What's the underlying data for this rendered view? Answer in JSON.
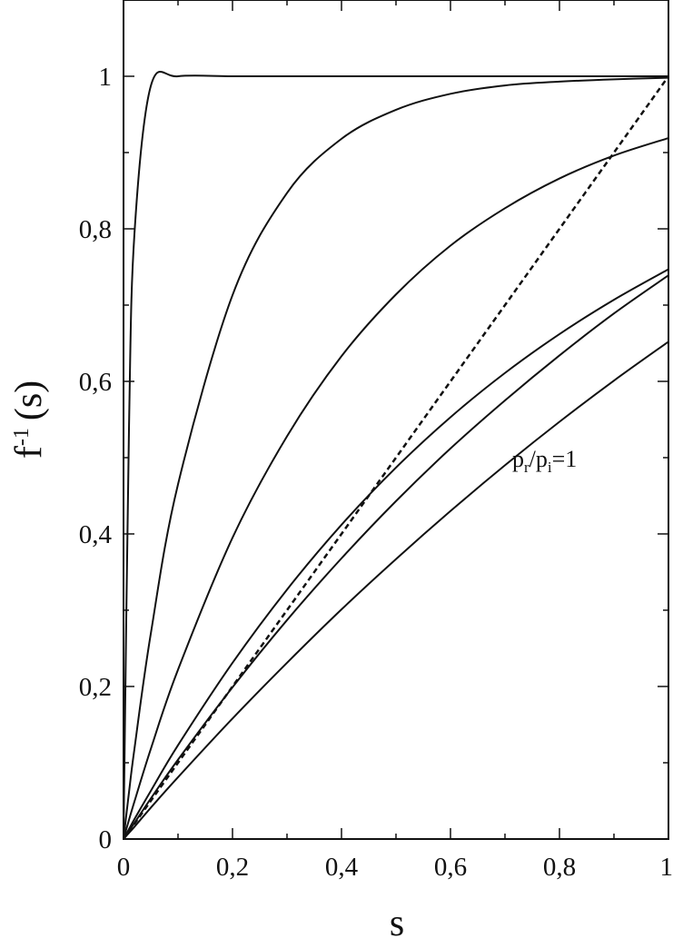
{
  "chart_data": {
    "type": "line",
    "title": "",
    "xlabel": "s",
    "ylabel": {
      "main": "f",
      "sup": "-1",
      "arg": "(s)"
    },
    "xlim": [
      0,
      1
    ],
    "ylim": [
      0,
      1.1
    ],
    "x_ticks": [
      {
        "value": 0,
        "label": "0"
      },
      {
        "value": 0.2,
        "label": "0,2"
      },
      {
        "value": 0.4,
        "label": "0,4"
      },
      {
        "value": 0.6,
        "label": "0,6"
      },
      {
        "value": 0.8,
        "label": "0,8"
      },
      {
        "value": 1,
        "label": "1"
      }
    ],
    "y_ticks": [
      {
        "value": 0,
        "label": "0"
      },
      {
        "value": 0.2,
        "label": "0,2"
      },
      {
        "value": 0.4,
        "label": "0,4"
      },
      {
        "value": 0.6,
        "label": "0,6"
      },
      {
        "value": 0.8,
        "label": "0,8"
      },
      {
        "value": 1,
        "label": "1"
      }
    ],
    "grid": false,
    "x": [
      0,
      0.01,
      0.02,
      0.05,
      0.1,
      0.2,
      0.3,
      0.4,
      0.5,
      0.6,
      0.7,
      0.8,
      0.9,
      1.0
    ],
    "series": [
      {
        "style": "solid",
        "values": [
          0,
          0.537,
          0.793,
          0.987,
          1.0,
          1.0,
          1.0,
          1.0,
          1.0,
          1.0,
          1.0,
          1.0,
          1.0,
          1.0
        ]
      },
      {
        "style": "solid",
        "values": [
          0,
          0.061,
          0.118,
          0.269,
          0.465,
          0.713,
          0.847,
          0.918,
          0.956,
          0.977,
          0.988,
          0.993,
          0.996,
          0.998
        ]
      },
      {
        "style": "solid",
        "values": [
          0,
          0.025,
          0.049,
          0.118,
          0.222,
          0.395,
          0.528,
          0.633,
          0.714,
          0.778,
          0.827,
          0.866,
          0.896,
          0.919
        ]
      },
      {
        "style": "solid",
        "values": [
          0,
          0.013,
          0.026,
          0.063,
          0.123,
          0.231,
          0.327,
          0.412,
          0.487,
          0.553,
          0.611,
          0.662,
          0.707,
          0.747
        ]
      },
      {
        "style": "solid",
        "values": [
          0,
          0.011,
          0.021,
          0.053,
          0.104,
          0.199,
          0.287,
          0.368,
          0.443,
          0.512,
          0.575,
          0.634,
          0.689,
          0.739
        ]
      },
      {
        "style": "solid",
        "values": [
          0,
          0.008,
          0.016,
          0.041,
          0.081,
          0.158,
          0.231,
          0.301,
          0.367,
          0.43,
          0.49,
          0.547,
          0.601,
          0.652
        ]
      },
      {
        "style": "dashed",
        "values": [
          0,
          0.01,
          0.02,
          0.05,
          0.1,
          0.2,
          0.3,
          0.4,
          0.5,
          0.6,
          0.7,
          0.8,
          0.9,
          1.0
        ]
      }
    ],
    "annotation": {
      "base": "p",
      "sub1": "r",
      "slash": "/p",
      "sub2": "i",
      "tail": "=1",
      "x": 0.75,
      "y": 0.5
    }
  }
}
